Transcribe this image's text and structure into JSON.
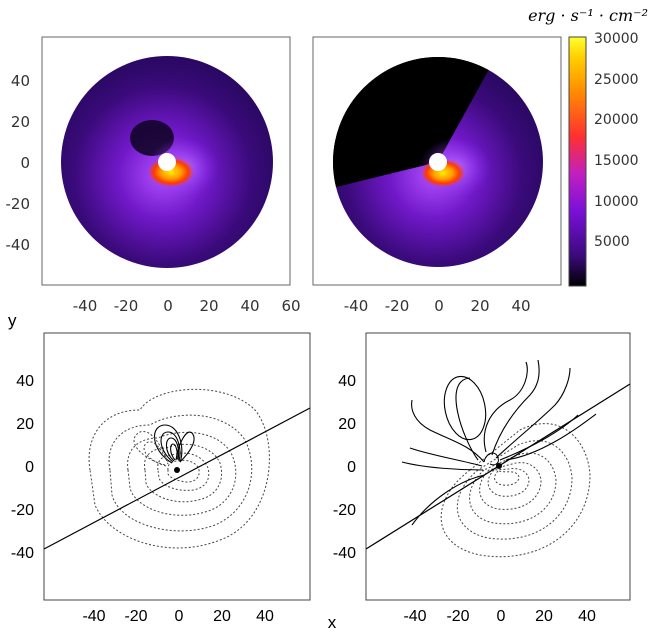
{
  "top_panels": {
    "colorbar_unit": "erg · s⁻¹ · cm⁻²",
    "colorbar_ticks": [
      "30000",
      "25000",
      "20000",
      "15000",
      "10000",
      "5000"
    ],
    "left_y_ticks": [
      "40",
      "20",
      "0",
      "-20",
      "-40"
    ],
    "left_x_ticks": [
      "-40",
      "-20",
      "0",
      "20",
      "40",
      "60"
    ],
    "right_x_ticks": [
      "-40",
      "-20",
      "0",
      "20",
      "40"
    ]
  },
  "bottom_panels": {
    "ylabel": "y",
    "xlabel": "x",
    "left_y_ticks": [
      "40",
      "20",
      "0",
      "-20",
      "-40"
    ],
    "right_y_ticks": [
      "40",
      "20",
      "0",
      "-20",
      "-40"
    ],
    "left_x_ticks": [
      "-40",
      "-20",
      "0",
      "20",
      "40"
    ],
    "right_x_ticks": [
      "-40",
      "-20",
      "0",
      "20",
      "40"
    ]
  },
  "colors": {
    "map_dark": "#1a0033",
    "map_mid": "#7a1fd6",
    "map_hot": "#ff5a00",
    "map_peak": "#ffee00"
  }
}
